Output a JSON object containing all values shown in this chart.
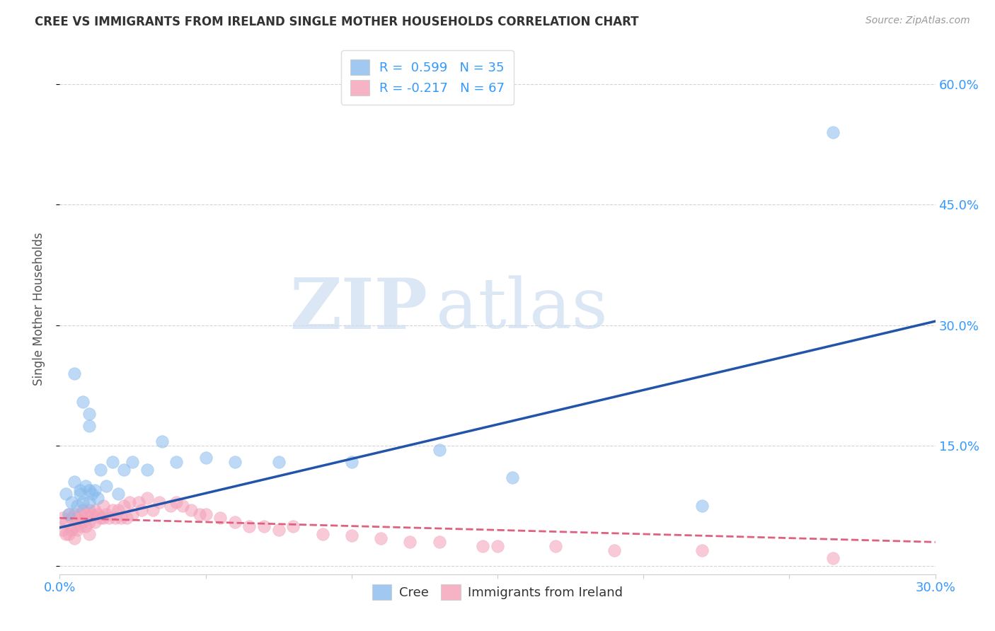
{
  "title": "CREE VS IMMIGRANTS FROM IRELAND SINGLE MOTHER HOUSEHOLDS CORRELATION CHART",
  "source": "Source: ZipAtlas.com",
  "ylabel": "Single Mother Households",
  "xlim": [
    0.0,
    0.3
  ],
  "ylim": [
    -0.01,
    0.65
  ],
  "grid_color": "#d0d0d0",
  "background_color": "#ffffff",
  "watermark_ZIP": "ZIP",
  "watermark_atlas": "atlas",
  "cree_color": "#88bbee",
  "cree_edge_color": "#88bbee",
  "ireland_color": "#f4a0b8",
  "ireland_edge_color": "#f4a0b8",
  "cree_line_color": "#2255aa",
  "ireland_line_color": "#e06080",
  "R_cree": 0.599,
  "N_cree": 35,
  "R_ireland": -0.217,
  "N_ireland": 67,
  "cree_line_x0": 0.0,
  "cree_line_y0": 0.048,
  "cree_line_x1": 0.3,
  "cree_line_y1": 0.305,
  "ireland_line_x0": 0.0,
  "ireland_line_y0": 0.06,
  "ireland_line_x1": 0.3,
  "ireland_line_y1": 0.03,
  "cree_x": [
    0.002,
    0.003,
    0.004,
    0.005,
    0.006,
    0.007,
    0.007,
    0.008,
    0.009,
    0.01,
    0.01,
    0.011,
    0.012,
    0.013,
    0.014,
    0.016,
    0.018,
    0.02,
    0.022,
    0.025,
    0.03,
    0.035,
    0.04,
    0.05,
    0.06,
    0.075,
    0.1,
    0.13,
    0.155,
    0.22,
    0.005,
    0.008,
    0.01,
    0.265,
    0.01
  ],
  "cree_y": [
    0.09,
    0.065,
    0.08,
    0.105,
    0.075,
    0.09,
    0.095,
    0.08,
    0.1,
    0.08,
    0.095,
    0.09,
    0.095,
    0.085,
    0.12,
    0.1,
    0.13,
    0.09,
    0.12,
    0.13,
    0.12,
    0.155,
    0.13,
    0.135,
    0.13,
    0.13,
    0.13,
    0.145,
    0.11,
    0.075,
    0.24,
    0.205,
    0.19,
    0.54,
    0.175
  ],
  "ireland_x": [
    0.001,
    0.001,
    0.002,
    0.002,
    0.003,
    0.003,
    0.004,
    0.004,
    0.005,
    0.005,
    0.005,
    0.006,
    0.006,
    0.007,
    0.007,
    0.008,
    0.008,
    0.009,
    0.009,
    0.01,
    0.01,
    0.01,
    0.011,
    0.012,
    0.012,
    0.013,
    0.014,
    0.015,
    0.015,
    0.016,
    0.017,
    0.018,
    0.019,
    0.02,
    0.021,
    0.022,
    0.023,
    0.024,
    0.025,
    0.027,
    0.028,
    0.03,
    0.032,
    0.034,
    0.038,
    0.04,
    0.042,
    0.045,
    0.048,
    0.05,
    0.055,
    0.06,
    0.065,
    0.07,
    0.075,
    0.08,
    0.09,
    0.1,
    0.11,
    0.12,
    0.13,
    0.145,
    0.15,
    0.17,
    0.19,
    0.22,
    0.265
  ],
  "ireland_y": [
    0.06,
    0.045,
    0.055,
    0.04,
    0.065,
    0.04,
    0.06,
    0.045,
    0.065,
    0.05,
    0.035,
    0.06,
    0.045,
    0.065,
    0.05,
    0.07,
    0.055,
    0.065,
    0.05,
    0.07,
    0.055,
    0.04,
    0.065,
    0.07,
    0.055,
    0.065,
    0.06,
    0.075,
    0.06,
    0.065,
    0.06,
    0.07,
    0.06,
    0.07,
    0.06,
    0.075,
    0.06,
    0.08,
    0.065,
    0.08,
    0.07,
    0.085,
    0.07,
    0.08,
    0.075,
    0.08,
    0.075,
    0.07,
    0.065,
    0.065,
    0.06,
    0.055,
    0.05,
    0.05,
    0.045,
    0.05,
    0.04,
    0.038,
    0.035,
    0.03,
    0.03,
    0.025,
    0.025,
    0.025,
    0.02,
    0.02,
    0.01
  ]
}
